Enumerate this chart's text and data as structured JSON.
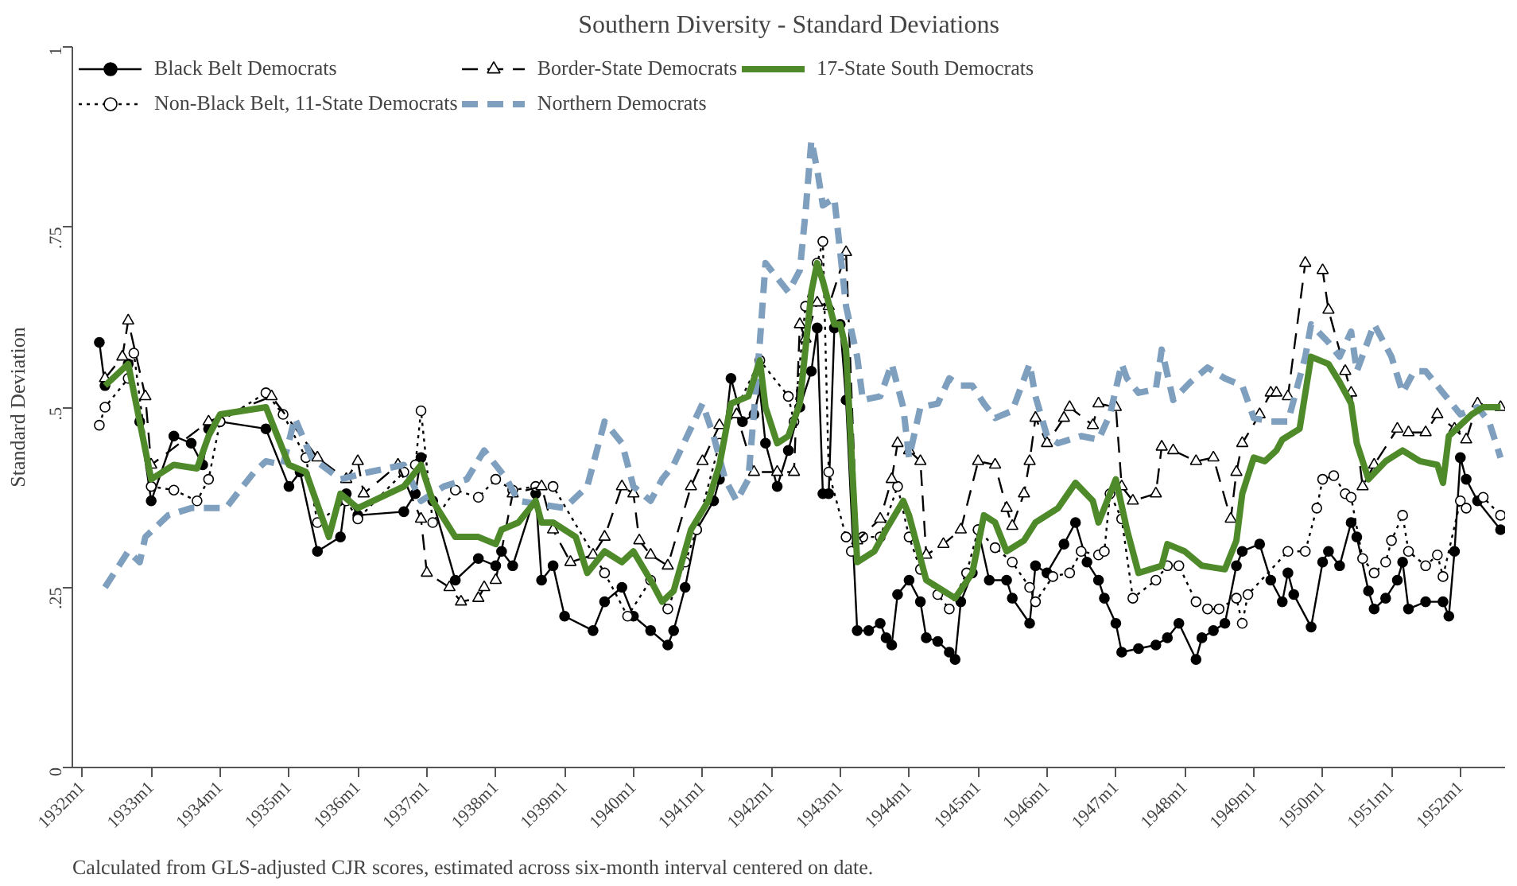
{
  "chart_data": {
    "type": "line",
    "title": "Southern Diversity - Standard Deviations",
    "ylabel": "Standard Deviation",
    "annotations": [
      "Calculated from GLS-adjusted CJR scores, estimated across six-month interval centered on date."
    ],
    "xlim": [
      "1931-11-10",
      "1952-08-25"
    ],
    "ylim": [
      0,
      1
    ],
    "xticks": [
      {
        "value": "1932-01",
        "label": "1932m1"
      },
      {
        "value": "1933-01",
        "label": "1933m1"
      },
      {
        "value": "1934-01",
        "label": "1934m1"
      },
      {
        "value": "1935-01",
        "label": "1935m1"
      },
      {
        "value": "1936-01",
        "label": "1936m1"
      },
      {
        "value": "1937-01",
        "label": "1937m1"
      },
      {
        "value": "1938-01",
        "label": "1938m1"
      },
      {
        "value": "1939-01",
        "label": "1939m1"
      },
      {
        "value": "1940-01",
        "label": "1940m1"
      },
      {
        "value": "1941-01",
        "label": "1941m1"
      },
      {
        "value": "1942-01",
        "label": "1942m1"
      },
      {
        "value": "1943-01",
        "label": "1943m1"
      },
      {
        "value": "1944-01",
        "label": "1944m1"
      },
      {
        "value": "1945-01",
        "label": "1945m1"
      },
      {
        "value": "1946-01",
        "label": "1946m1"
      },
      {
        "value": "1947-01",
        "label": "1947m1"
      },
      {
        "value": "1948-01",
        "label": "1948m1"
      },
      {
        "value": "1949-01",
        "label": "1949m1"
      },
      {
        "value": "1950-01",
        "label": "1950m1"
      },
      {
        "value": "1951-01",
        "label": "1951m1"
      },
      {
        "value": "1952-01",
        "label": "1952m1"
      }
    ],
    "yticks": [
      0,
      {
        "value": 0.25,
        "label": ".25"
      },
      {
        "value": 0.5,
        "label": ".5"
      },
      {
        "value": 0.75,
        "label": ".75"
      },
      1
    ],
    "grid": false,
    "legend": "top left",
    "series": [
      {
        "name": "Black Belt Democrats",
        "color": "#000000",
        "marker": "circle",
        "line_style": "solid",
        "x": [
          "1932-04",
          "1932-05",
          "1932-09",
          "1932-11",
          "1933-01",
          "1933-05",
          "1933-08",
          "1933-10",
          "1933-11",
          "1934-01",
          "1934-09",
          "1935-01",
          "1935-03",
          "1935-06",
          "1935-10",
          "1935-11",
          "1936-01",
          "1936-09",
          "1936-11",
          "1936-12",
          "1937-02",
          "1937-06",
          "1937-10",
          "1938-01",
          "1938-02",
          "1938-04",
          "1938-08",
          "1938-09",
          "1938-11",
          "1939-01",
          "1939-06",
          "1939-08",
          "1939-11",
          "1940-01",
          "1940-04",
          "1940-07",
          "1940-08",
          "1940-10",
          "1940-12",
          "1941-03",
          "1941-04",
          "1941-06",
          "1941-08",
          "1941-10",
          "1941-11",
          "1941-12",
          "1942-02",
          "1942-04",
          "1942-06",
          "1942-08",
          "1942-09",
          "1942-10",
          "1942-11",
          "1942-12",
          "1943-01",
          "1943-02",
          "1943-04",
          "1943-06",
          "1943-08",
          "1943-09",
          "1943-10",
          "1943-11",
          "1944-01",
          "1944-03",
          "1944-04",
          "1944-06",
          "1944-08",
          "1944-09",
          "1944-10",
          "1944-12",
          "1945-01",
          "1945-03",
          "1945-06",
          "1945-07",
          "1945-10",
          "1945-11",
          "1946-01",
          "1946-04",
          "1946-06",
          "1946-08",
          "1946-10",
          "1946-11",
          "1947-01",
          "1947-02",
          "1947-05",
          "1947-08",
          "1947-10",
          "1947-12",
          "1948-03",
          "1948-04",
          "1948-06",
          "1948-08",
          "1948-10",
          "1948-11",
          "1949-02",
          "1949-04",
          "1949-06",
          "1949-07",
          "1949-08",
          "1949-11",
          "1950-01",
          "1950-02",
          "1950-04",
          "1950-06",
          "1950-07",
          "1950-09",
          "1950-10",
          "1950-12",
          "1951-02",
          "1951-03",
          "1951-04",
          "1951-07",
          "1951-10",
          "1951-11",
          "1951-12",
          "1952-01",
          "1952-02",
          "1952-04",
          "1952-08"
        ],
        "values": [
          0.59,
          0.53,
          0.56,
          0.48,
          0.37,
          0.46,
          0.45,
          0.42,
          0.47,
          0.48,
          0.47,
          0.39,
          0.41,
          0.3,
          0.32,
          0.38,
          0.35,
          0.355,
          0.38,
          0.43,
          0.37,
          0.26,
          0.29,
          0.28,
          0.3,
          0.28,
          0.38,
          0.26,
          0.28,
          0.21,
          0.19,
          0.23,
          0.25,
          0.21,
          0.19,
          0.17,
          0.19,
          0.25,
          0.33,
          0.37,
          0.4,
          0.54,
          0.48,
          0.49,
          0.525,
          0.45,
          0.39,
          0.44,
          0.5,
          0.55,
          0.61,
          0.38,
          0.38,
          0.61,
          0.615,
          0.51,
          0.19,
          0.19,
          0.2,
          0.18,
          0.17,
          0.24,
          0.26,
          0.23,
          0.18,
          0.175,
          0.16,
          0.15,
          0.23,
          0.27,
          0.33,
          0.26,
          0.26,
          0.235,
          0.2,
          0.28,
          0.27,
          0.31,
          0.34,
          0.285,
          0.26,
          0.235,
          0.2,
          0.16,
          0.165,
          0.17,
          0.18,
          0.2,
          0.15,
          0.18,
          0.19,
          0.2,
          0.28,
          0.3,
          0.31,
          0.26,
          0.23,
          0.27,
          0.24,
          0.195,
          0.285,
          0.3,
          0.28,
          0.34,
          0.32,
          0.245,
          0.22,
          0.235,
          0.26,
          0.285,
          0.22,
          0.23,
          0.23,
          0.21,
          0.3,
          0.43,
          0.4,
          0.37,
          0.33
        ]
      },
      {
        "name": "Non-Black Belt, 11-State Democrats",
        "color": "#000000",
        "marker": "circle",
        "line_style": "dotted",
        "x": [
          "1932-04",
          "1932-05",
          "1932-09",
          "1932-10",
          "1933-01",
          "1933-05",
          "1933-09",
          "1933-11",
          "1934-01",
          "1934-09",
          "1934-12",
          "1935-04",
          "1935-06",
          "1935-11",
          "1936-01",
          "1936-09",
          "1936-11",
          "1936-12",
          "1937-02",
          "1937-06",
          "1937-10",
          "1938-01",
          "1938-04",
          "1938-08",
          "1938-11",
          "1939-08",
          "1939-12",
          "1940-04",
          "1940-07",
          "1940-10",
          "1940-12",
          "1941-04",
          "1941-11",
          "1942-04",
          "1942-05",
          "1942-07",
          "1942-09",
          "1942-10",
          "1942-11",
          "1943-02",
          "1943-03",
          "1943-05",
          "1943-08",
          "1943-11",
          "1944-01",
          "1944-03",
          "1944-06",
          "1944-08",
          "1944-11",
          "1945-01",
          "1945-04",
          "1945-07",
          "1945-10",
          "1945-11",
          "1946-02",
          "1946-05",
          "1946-07",
          "1946-10",
          "1946-11",
          "1946-12",
          "1947-02",
          "1947-04",
          "1947-08",
          "1947-10",
          "1947-12",
          "1948-03",
          "1948-05",
          "1948-07",
          "1948-10",
          "1948-11",
          "1948-12",
          "1949-07",
          "1949-10",
          "1949-12",
          "1950-01",
          "1950-03",
          "1950-05",
          "1950-06",
          "1950-08",
          "1950-10",
          "1950-12",
          "1951-01",
          "1951-03",
          "1951-04",
          "1951-07",
          "1951-09",
          "1951-10",
          "1952-01",
          "1952-02",
          "1952-05",
          "1952-08"
        ],
        "values": [
          0.475,
          0.5,
          0.54,
          0.575,
          0.39,
          0.385,
          0.37,
          0.4,
          0.48,
          0.52,
          0.49,
          0.43,
          0.34,
          0.37,
          0.345,
          0.41,
          0.42,
          0.495,
          0.34,
          0.385,
          0.375,
          0.4,
          0.385,
          0.39,
          0.39,
          0.27,
          0.21,
          0.26,
          0.22,
          0.285,
          0.33,
          0.45,
          0.565,
          0.515,
          0.48,
          0.64,
          0.7,
          0.73,
          0.41,
          0.32,
          0.3,
          0.32,
          0.32,
          0.39,
          0.32,
          0.275,
          0.24,
          0.22,
          0.27,
          0.33,
          0.305,
          0.285,
          0.25,
          0.23,
          0.265,
          0.27,
          0.3,
          0.295,
          0.3,
          0.38,
          0.345,
          0.235,
          0.26,
          0.28,
          0.28,
          0.23,
          0.22,
          0.22,
          0.235,
          0.2,
          0.24,
          0.3,
          0.3,
          0.36,
          0.4,
          0.405,
          0.38,
          0.375,
          0.29,
          0.27,
          0.285,
          0.315,
          0.35,
          0.3,
          0.28,
          0.295,
          0.265,
          0.37,
          0.36,
          0.375,
          0.35
        ]
      },
      {
        "name": "Border-State Democrats",
        "color": "#000000",
        "marker": "triangle",
        "line_style": "dashed",
        "x": [
          "1932-05",
          "1932-08",
          "1932-09",
          "1932-12",
          "1933-01",
          "1933-11",
          "1934-10",
          "1935-06",
          "1935-11",
          "1936-01",
          "1936-02",
          "1936-08",
          "1936-12",
          "1937-01",
          "1937-05",
          "1937-07",
          "1937-10",
          "1937-11",
          "1938-01",
          "1938-04",
          "1938-09",
          "1938-11",
          "1939-02",
          "1939-06",
          "1939-08",
          "1939-11",
          "1940-01",
          "1940-02",
          "1940-04",
          "1940-07",
          "1940-11",
          "1941-01",
          "1941-04",
          "1941-07",
          "1941-10",
          "1942-02",
          "1942-05",
          "1942-06",
          "1942-07",
          "1942-09",
          "1942-11",
          "1943-02",
          "1943-04",
          "1943-08",
          "1943-10",
          "1943-11",
          "1944-01",
          "1944-03",
          "1944-04",
          "1944-07",
          "1944-10",
          "1945-01",
          "1945-04",
          "1945-06",
          "1945-07",
          "1945-09",
          "1945-10",
          "1945-11",
          "1946-01",
          "1946-04",
          "1946-05",
          "1946-09",
          "1946-10",
          "1947-01",
          "1947-02",
          "1947-04",
          "1947-08",
          "1947-09",
          "1947-11",
          "1948-03",
          "1948-06",
          "1948-09",
          "1948-10",
          "1948-11",
          "1949-02",
          "1949-04",
          "1949-05",
          "1949-07",
          "1949-10",
          "1950-01",
          "1950-02",
          "1950-05",
          "1950-06",
          "1950-08",
          "1950-10",
          "1951-02",
          "1951-04",
          "1951-07",
          "1951-09",
          "1951-12",
          "1952-02",
          "1952-04",
          "1952-08"
        ],
        "values": [
          0.54,
          0.57,
          0.62,
          0.515,
          0.42,
          0.48,
          0.515,
          0.43,
          0.4,
          0.425,
          0.38,
          0.42,
          0.345,
          0.27,
          0.25,
          0.23,
          0.235,
          0.25,
          0.26,
          0.38,
          0.39,
          0.33,
          0.285,
          0.295,
          0.32,
          0.39,
          0.38,
          0.315,
          0.295,
          0.28,
          0.39,
          0.425,
          0.475,
          0.49,
          0.41,
          0.41,
          0.41,
          0.615,
          0.595,
          0.645,
          0.64,
          0.715,
          0.315,
          0.345,
          0.4,
          0.45,
          0.44,
          0.425,
          0.295,
          0.31,
          0.33,
          0.425,
          0.42,
          0.36,
          0.335,
          0.38,
          0.425,
          0.485,
          0.45,
          0.485,
          0.5,
          0.475,
          0.505,
          0.5,
          0.39,
          0.37,
          0.38,
          0.445,
          0.44,
          0.425,
          0.43,
          0.345,
          0.41,
          0.45,
          0.49,
          0.52,
          0.52,
          0.515,
          0.7,
          0.69,
          0.635,
          0.55,
          0.52,
          0.39,
          0.42,
          0.47,
          0.465,
          0.465,
          0.49,
          0.47,
          0.455,
          0.505,
          0.5
        ]
      },
      {
        "name": "Northern Democrats",
        "color": "#7f9fbf",
        "marker": "none",
        "line_style": "dashed",
        "x": [
          "1932-05",
          "1932-09",
          "1932-11",
          "1932-12",
          "1933-04",
          "1933-08",
          "1934-02",
          "1934-04",
          "1934-07",
          "1934-09",
          "1934-12",
          "1935-02",
          "1935-05",
          "1935-10",
          "1936-03",
          "1936-09",
          "1936-12",
          "1937-04",
          "1937-08",
          "1937-11",
          "1938-03",
          "1938-05",
          "1939-01",
          "1939-05",
          "1939-08",
          "1939-11",
          "1940-01",
          "1940-04",
          "1940-06",
          "1940-08",
          "1941-01",
          "1941-03",
          "1941-05",
          "1941-07",
          "1941-09",
          "1941-11",
          "1941-12",
          "1942-04",
          "1942-06",
          "1942-07",
          "1942-08",
          "1942-09",
          "1942-10",
          "1942-12",
          "1943-02",
          "1943-04",
          "1943-05",
          "1943-08",
          "1943-10",
          "1943-12",
          "1944-01",
          "1944-03",
          "1944-06",
          "1944-08",
          "1944-10",
          "1944-12",
          "1945-02",
          "1945-04",
          "1945-07",
          "1945-10",
          "1945-11",
          "1946-01",
          "1946-03",
          "1946-07",
          "1946-10",
          "1946-12",
          "1947-02",
          "1947-03",
          "1947-05",
          "1947-08",
          "1947-09",
          "1947-11",
          "1948-02",
          "1948-05",
          "1948-08",
          "1948-11",
          "1949-01",
          "1949-04",
          "1949-07",
          "1949-10",
          "1949-11",
          "1950-02",
          "1950-04",
          "1950-06",
          "1950-07",
          "1950-10",
          "1951-01",
          "1951-03",
          "1951-05",
          "1951-07",
          "1951-10",
          "1952-01",
          "1952-04",
          "1952-06",
          "1952-08"
        ],
        "values": [
          0.25,
          0.3,
          0.285,
          0.32,
          0.35,
          0.36,
          0.36,
          0.38,
          0.41,
          0.425,
          0.42,
          0.485,
          0.43,
          0.4,
          0.41,
          0.42,
          0.37,
          0.39,
          0.4,
          0.44,
          0.4,
          0.37,
          0.36,
          0.39,
          0.48,
          0.45,
          0.39,
          0.37,
          0.4,
          0.42,
          0.505,
          0.46,
          0.4,
          0.37,
          0.4,
          0.59,
          0.7,
          0.66,
          0.69,
          0.77,
          0.87,
          0.83,
          0.78,
          0.79,
          0.64,
          0.57,
          0.51,
          0.515,
          0.56,
          0.5,
          0.43,
          0.5,
          0.505,
          0.54,
          0.53,
          0.53,
          0.505,
          0.485,
          0.495,
          0.56,
          0.515,
          0.46,
          0.45,
          0.46,
          0.455,
          0.49,
          0.56,
          0.54,
          0.52,
          0.525,
          0.58,
          0.51,
          0.535,
          0.555,
          0.54,
          0.53,
          0.485,
          0.48,
          0.48,
          0.57,
          0.615,
          0.59,
          0.57,
          0.605,
          0.55,
          0.615,
          0.57,
          0.52,
          0.55,
          0.55,
          0.52,
          0.49,
          0.5,
          0.48,
          0.43
        ]
      },
      {
        "name": "17-State South Democrats",
        "color": "#4f8a2a",
        "marker": "none",
        "line_style": "solid",
        "x": [
          "1932-05",
          "1932-09",
          "1933-01",
          "1933-05",
          "1933-09",
          "1933-11",
          "1934-01",
          "1934-09",
          "1935-01",
          "1935-04",
          "1935-08",
          "1935-10",
          "1936-01",
          "1936-09",
          "1936-12",
          "1937-02",
          "1937-06",
          "1937-10",
          "1938-01",
          "1938-02",
          "1938-05",
          "1938-08",
          "1938-09",
          "1938-11",
          "1939-03",
          "1939-05",
          "1939-08",
          "1939-11",
          "1940-01",
          "1940-04",
          "1940-06",
          "1940-08",
          "1940-11",
          "1941-02",
          "1941-04",
          "1941-06",
          "1941-09",
          "1941-11",
          "1941-12",
          "1942-02",
          "1942-04",
          "1942-06",
          "1942-08",
          "1942-09",
          "1942-10",
          "1942-12",
          "1943-01",
          "1943-02",
          "1943-04",
          "1943-07",
          "1943-09",
          "1943-12",
          "1944-01",
          "1944-04",
          "1944-06",
          "1944-09",
          "1944-12",
          "1945-02",
          "1945-04",
          "1945-06",
          "1945-09",
          "1945-11",
          "1946-03",
          "1946-06",
          "1946-09",
          "1946-10",
          "1947-01",
          "1947-03",
          "1947-05",
          "1947-09",
          "1947-10",
          "1948-01",
          "1948-04",
          "1948-08",
          "1948-10",
          "1948-11",
          "1949-01",
          "1949-03",
          "1949-05",
          "1949-06",
          "1949-09",
          "1949-11",
          "1950-02",
          "1950-04",
          "1950-06",
          "1950-07",
          "1950-09",
          "1950-12",
          "1951-03",
          "1951-06",
          "1951-09",
          "1951-10",
          "1951-11",
          "1952-03",
          "1952-05",
          "1952-08"
        ],
        "values": [
          0.53,
          0.56,
          0.4,
          0.42,
          0.415,
          0.46,
          0.49,
          0.5,
          0.42,
          0.41,
          0.32,
          0.38,
          0.36,
          0.39,
          0.42,
          0.37,
          0.32,
          0.32,
          0.31,
          0.33,
          0.34,
          0.37,
          0.34,
          0.34,
          0.32,
          0.27,
          0.3,
          0.285,
          0.3,
          0.26,
          0.23,
          0.245,
          0.33,
          0.37,
          0.42,
          0.505,
          0.515,
          0.565,
          0.5,
          0.45,
          0.46,
          0.505,
          0.66,
          0.7,
          0.675,
          0.615,
          0.615,
          0.58,
          0.285,
          0.3,
          0.33,
          0.37,
          0.35,
          0.26,
          0.25,
          0.235,
          0.27,
          0.35,
          0.34,
          0.3,
          0.315,
          0.34,
          0.36,
          0.395,
          0.37,
          0.34,
          0.4,
          0.33,
          0.27,
          0.28,
          0.31,
          0.3,
          0.28,
          0.275,
          0.315,
          0.38,
          0.43,
          0.425,
          0.44,
          0.455,
          0.47,
          0.57,
          0.56,
          0.535,
          0.505,
          0.45,
          0.4,
          0.425,
          0.44,
          0.425,
          0.42,
          0.395,
          0.46,
          0.49,
          0.5,
          0.5
        ]
      }
    ]
  }
}
